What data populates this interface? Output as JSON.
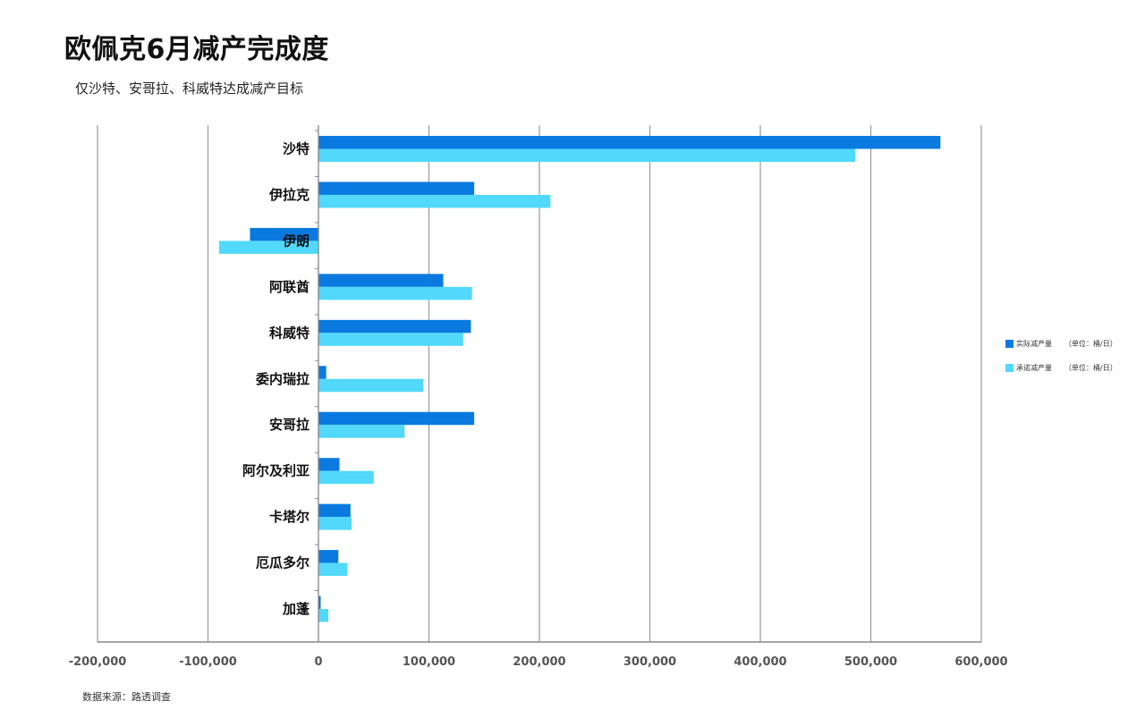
{
  "header": {
    "title": "欧佩克6月减产完成度",
    "subtitle": "仅沙特、安哥拉、科威特达成减产目标"
  },
  "footer": {
    "source": "数据来源：路透调查"
  },
  "colors": {
    "actual": "#0a7ae0",
    "pledged": "#52d8fb",
    "grid": "#9a9a9a",
    "axis": "#888888"
  },
  "legend": {
    "position": "right",
    "items": [
      {
        "label": "实际减产量",
        "unit": "（单位：桶/日）"
      },
      {
        "label": "承诺减产量",
        "unit": "（单位：桶/日）"
      }
    ]
  },
  "chart_data": {
    "type": "bar",
    "orientation": "horizontal",
    "categories": [
      "沙特",
      "伊拉克",
      "伊朗",
      "阿联酋",
      "科威特",
      "委内瑞拉",
      "安哥拉",
      "阿尔及利亚",
      "卡塔尔",
      "厄瓜多尔",
      "加蓬"
    ],
    "series": [
      {
        "name": "实际减产量",
        "values": [
          563000,
          141000,
          -62000,
          113000,
          138000,
          7000,
          141000,
          19000,
          29000,
          18000,
          2000
        ]
      },
      {
        "name": "承诺减产量",
        "values": [
          486000,
          210000,
          -90000,
          139000,
          131000,
          95000,
          78000,
          50000,
          30000,
          26000,
          9000
        ]
      }
    ],
    "xlim": [
      -200000,
      600000
    ],
    "xticks": [
      -200000,
      -100000,
      0,
      100000,
      200000,
      300000,
      400000,
      500000,
      600000
    ],
    "xtick_labels": [
      "-200,000",
      "-100,000",
      "0",
      "100,000",
      "200,000",
      "300,000",
      "400,000",
      "500,000",
      "600,000"
    ],
    "grid": "vertical",
    "legend_position": "right"
  }
}
